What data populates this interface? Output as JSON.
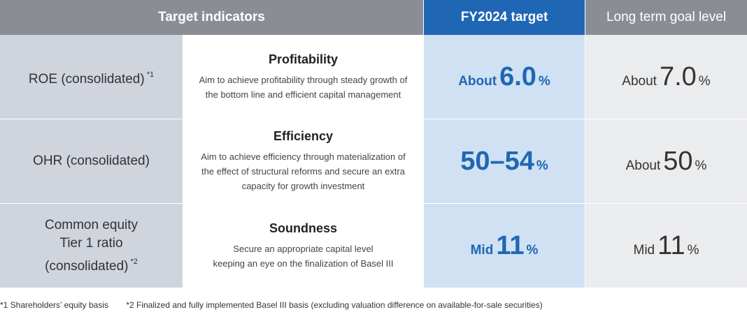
{
  "header": {
    "target_indicators": "Target indicators",
    "fy_target": "FY2024 target",
    "long_term": "Long term goal level"
  },
  "rows": [
    {
      "name": "ROE (consolidated)",
      "name_note": "*1",
      "title": "Profitability",
      "description": "Aim to achieve profitability through steady growth of the bottom line and efficient capital management",
      "fy_prefix": "About",
      "fy_value": "6.0",
      "fy_unit": "%",
      "lt_prefix": "About",
      "lt_value": "7.0",
      "lt_unit": "%"
    },
    {
      "name": "OHR (consolidated)",
      "title": "Efficiency",
      "description": "Aim to achieve efficiency through materialization of the effect of structural reforms and secure an extra capacity for growth investment",
      "fy_prefix": "",
      "fy_value": "50–54",
      "fy_unit": "%",
      "lt_prefix": "About",
      "lt_value": "50",
      "lt_unit": "%"
    },
    {
      "name_line1": "Common equity",
      "name_line2": "Tier 1 ratio",
      "name_line3": "(consolidated)",
      "name_note": "*2",
      "title": "Soundness",
      "description_line1": "Secure an appropriate capital level",
      "description_line2": "keeping an eye on the finalization of Basel III",
      "fy_prefix": "Mid",
      "fy_value": "11",
      "fy_unit": "%",
      "lt_prefix": "Mid",
      "lt_value": "11",
      "lt_unit": "%"
    }
  ],
  "footnotes": {
    "note1": "*1 Shareholders’ equity basis",
    "note2": "*2 Finalized and fully implemented Basel III basis (excluding valuation difference on available-for-sale securities)"
  },
  "colors": {
    "header_gray": "#8a8d94",
    "header_blue": "#1f67b4",
    "name_cell": "#cfd4dd",
    "fy_cell": "#d0e1f3",
    "long_term_cell": "#ebecee"
  }
}
